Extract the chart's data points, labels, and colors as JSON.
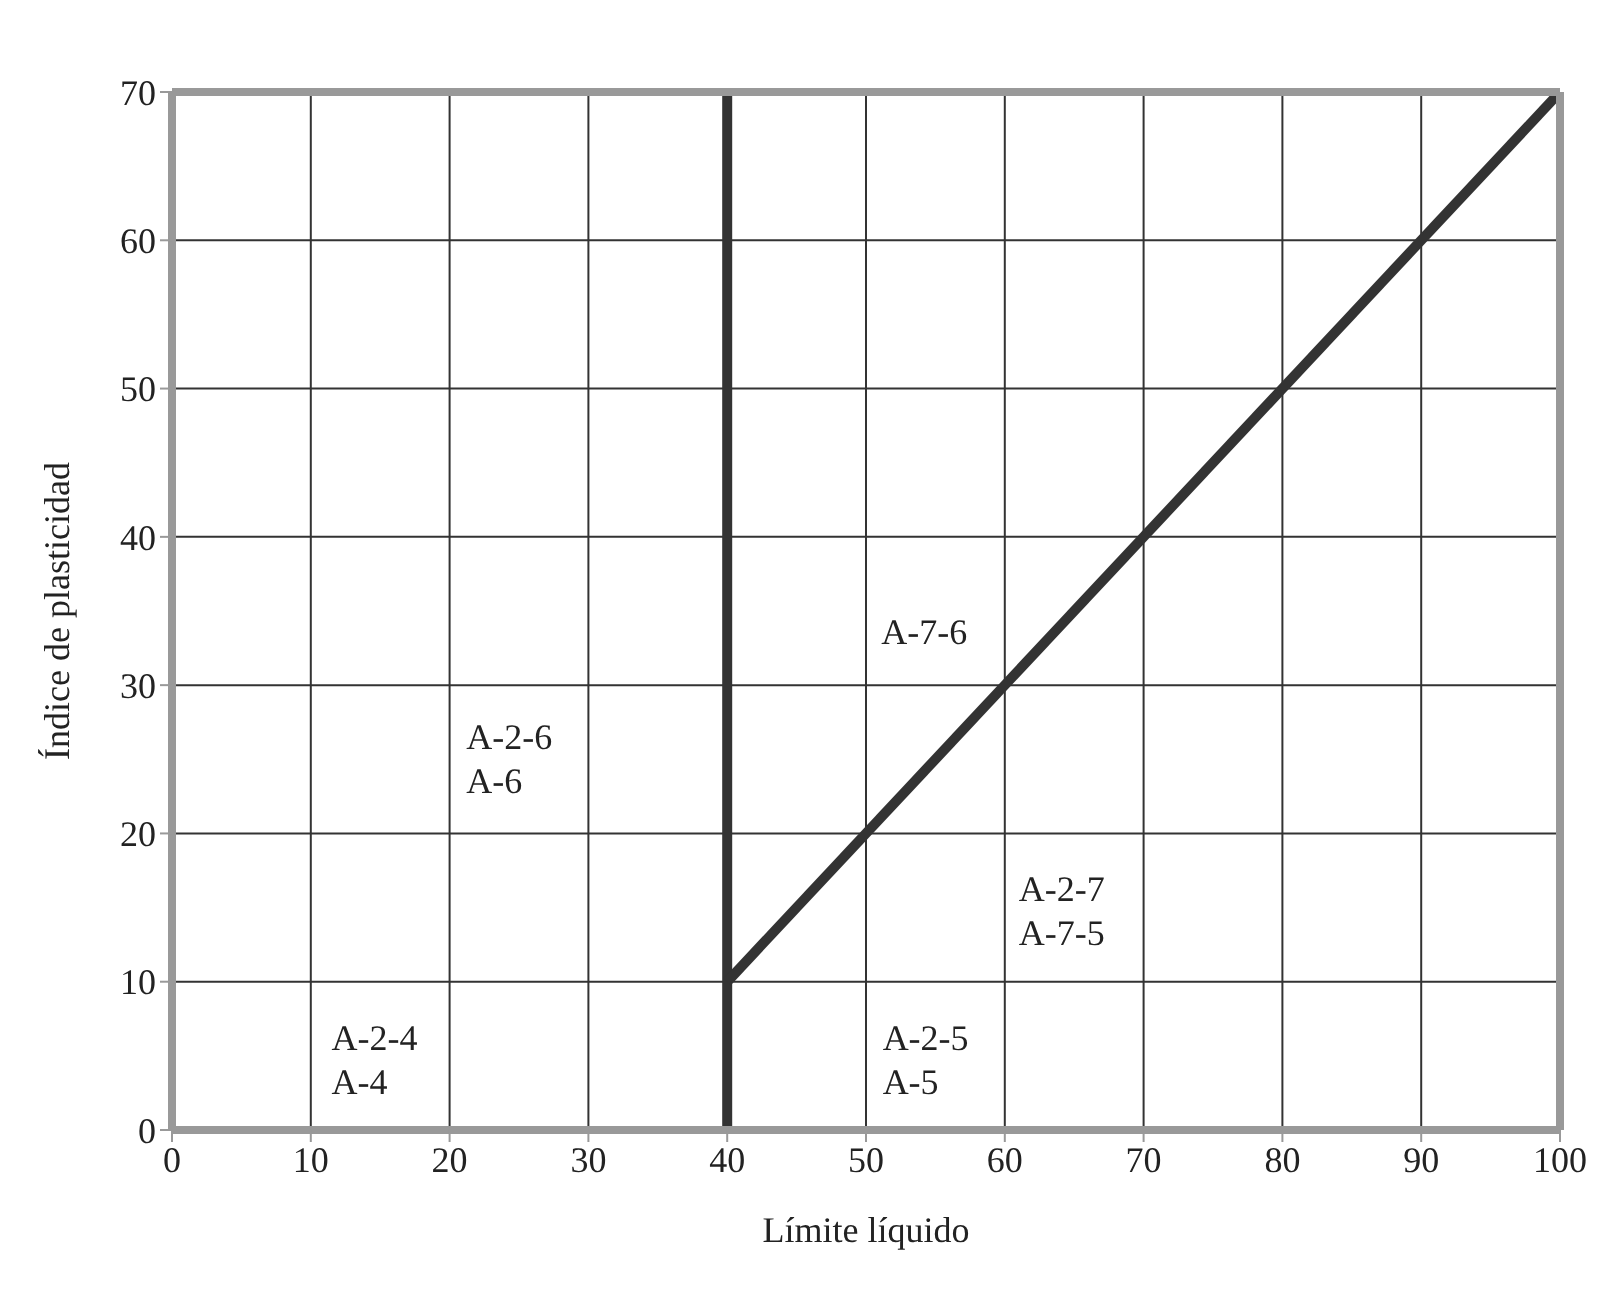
{
  "chart_data": {
    "type": "line",
    "xlabel": "Límite líquido",
    "ylabel": "Índice de plasticidad",
    "xlim": [
      0,
      100
    ],
    "ylim": [
      0,
      70
    ],
    "xticks": [
      0,
      10,
      20,
      30,
      40,
      50,
      60,
      70,
      80,
      90,
      100
    ],
    "yticks": [
      0,
      10,
      20,
      30,
      40,
      50,
      60,
      70
    ],
    "grid": true,
    "marker": "none",
    "line_style": "solid",
    "series": [
      {
        "color": "#333333",
        "x": [
          40,
          100
        ],
        "values": [
          10,
          70
        ]
      }
    ],
    "ref_lines": [
      {
        "axis": "x",
        "value": 40,
        "color": "#333333"
      }
    ],
    "annotations": [
      "A-2-4\nA-4",
      "A-2-6\nA-6",
      "A-7-6",
      "A-2-7\nA-7-5",
      "A-2-5\nA-5"
    ]
  }
}
